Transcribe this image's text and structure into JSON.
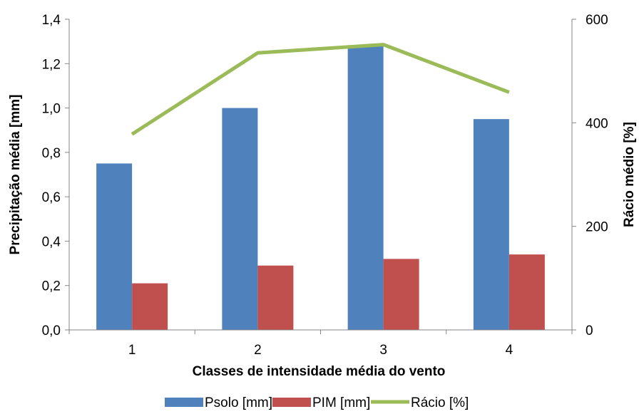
{
  "chart_data": {
    "type": "bar",
    "categories": [
      "1",
      "2",
      "3",
      "4"
    ],
    "series": [
      {
        "name": "Psolo [mm]",
        "axis": "left",
        "kind": "bar",
        "color": "#4F81BD",
        "values": [
          0.75,
          1.0,
          1.28,
          0.95
        ]
      },
      {
        "name": "PIM [mm]",
        "axis": "left",
        "kind": "bar",
        "color": "#C0504D",
        "values": [
          0.21,
          0.29,
          0.32,
          0.34
        ]
      },
      {
        "name": "Rácio [%]",
        "axis": "right",
        "kind": "line",
        "color": "#9BBB59",
        "values": [
          378,
          535,
          551,
          459
        ]
      }
    ],
    "xlabel": "Classes de  intensidade média do vento",
    "ylabel": "Precipitação média [mm]",
    "y2label": "Rácio médio [%]",
    "ylim": [
      0,
      1.4
    ],
    "y2lim": [
      0,
      600
    ],
    "yticks": [
      "0,0",
      "0,2",
      "0,4",
      "0,6",
      "0,8",
      "1,0",
      "1,2",
      "1,4"
    ],
    "y2ticks": [
      "0",
      "200",
      "400",
      "600"
    ],
    "grid": false,
    "legend_position": "bottom"
  }
}
